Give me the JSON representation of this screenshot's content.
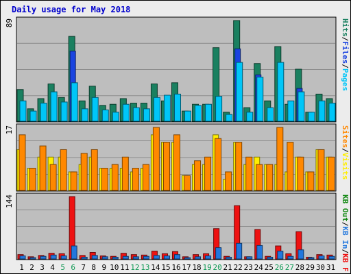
{
  "chart_data": [
    {
      "type": "bar",
      "title": "Daily usage for May 2018",
      "categories": [
        "1",
        "2",
        "3",
        "4",
        "5",
        "6",
        "7",
        "8",
        "9",
        "10",
        "11",
        "12",
        "13",
        "14",
        "15",
        "16",
        "17",
        "18",
        "19",
        "20",
        "21",
        "22",
        "23",
        "24",
        "25",
        "26",
        "27",
        "28",
        "29",
        "30",
        "31"
      ],
      "weekend_days": [
        "5",
        "6",
        "12",
        "13",
        "19",
        "20",
        "26",
        "27"
      ],
      "ymax_label": "89",
      "ylim": [
        0,
        89
      ],
      "grid": true,
      "legend_right": [
        {
          "name": "Pages",
          "color": "#00c6f8"
        },
        {
          "name": "Files",
          "color": "#1a44e0"
        },
        {
          "name": "Hits",
          "color": "#1a8060"
        }
      ],
      "legend_sep": "/",
      "series": [
        {
          "name": "Hits",
          "color": "#1a8060",
          "values": [
            28,
            11,
            20,
            33,
            21,
            75,
            18,
            31,
            14,
            15,
            20,
            16,
            16,
            33,
            18,
            34,
            9,
            15,
            15,
            65,
            8,
            89,
            12,
            51,
            18,
            66,
            15,
            46,
            8,
            24,
            20
          ]
        },
        {
          "name": "Files",
          "color": "#1a44e0",
          "values": [
            0,
            0,
            0,
            0,
            0,
            62,
            0,
            0,
            0,
            0,
            0,
            0,
            0,
            0,
            0,
            0,
            0,
            0,
            0,
            0,
            0,
            64,
            0,
            41,
            0,
            0,
            0,
            29,
            0,
            0,
            0
          ]
        },
        {
          "name": "Pages",
          "color": "#00c6f8",
          "values": [
            18,
            9,
            16,
            26,
            17,
            34,
            11,
            21,
            10,
            8,
            15,
            12,
            11,
            21,
            23,
            24,
            9,
            14,
            15,
            22,
            6,
            52,
            8,
            39,
            12,
            52,
            18,
            26,
            8,
            18,
            16
          ]
        }
      ]
    },
    {
      "type": "bar",
      "ymax_label": "17",
      "ylim": [
        0,
        17
      ],
      "grid": true,
      "legend_right": [
        {
          "name": "Visits",
          "color": "#ffee00"
        },
        {
          "name": "Sites",
          "color": "#ff8800"
        }
      ],
      "legend_sep": "/",
      "series": [
        {
          "name": "Visits",
          "color": "#ffee00",
          "values": [
            11,
            6,
            9,
            9,
            9,
            5,
            7,
            9,
            6,
            6,
            6,
            5,
            6,
            15,
            13,
            13,
            4,
            7,
            7,
            15,
            3,
            13,
            7,
            9,
            7,
            7,
            5,
            9,
            5,
            11,
            9
          ]
        },
        {
          "name": "Sites",
          "color": "#ff8800",
          "values": [
            15,
            6,
            12,
            7,
            11,
            5,
            10,
            11,
            6,
            7,
            9,
            6,
            7,
            17,
            13,
            15,
            4,
            8,
            9,
            14,
            5,
            13,
            9,
            7,
            7,
            17,
            13,
            9,
            5,
            11,
            9
          ]
        }
      ]
    },
    {
      "type": "bar",
      "ymax_label": "144",
      "ylim": [
        0,
        144
      ],
      "grid": true,
      "legend_right": [
        {
          "name": "KB F",
          "color": "#ee1111"
        },
        {
          "name": "KB In",
          "color": "#2277dd"
        },
        {
          "name": "KB Out",
          "color": "#118811"
        }
      ],
      "legend_sep": "/",
      "series": [
        {
          "name": "KB F",
          "color": "#ee1111",
          "values": [
            10,
            5,
            8,
            13,
            12,
            144,
            8,
            15,
            7,
            6,
            13,
            10,
            9,
            18,
            12,
            17,
            5,
            10,
            12,
            70,
            6,
            123,
            5,
            68,
            6,
            30,
            12,
            63,
            4,
            10,
            9
          ]
        },
        {
          "name": "KB In",
          "color": "#2277dd",
          "values": [
            7,
            3,
            6,
            9,
            7,
            30,
            4,
            8,
            5,
            4,
            6,
            5,
            6,
            8,
            7,
            10,
            3,
            5,
            7,
            26,
            4,
            36,
            5,
            31,
            4,
            18,
            6,
            21,
            3,
            7,
            6
          ]
        }
      ]
    }
  ]
}
